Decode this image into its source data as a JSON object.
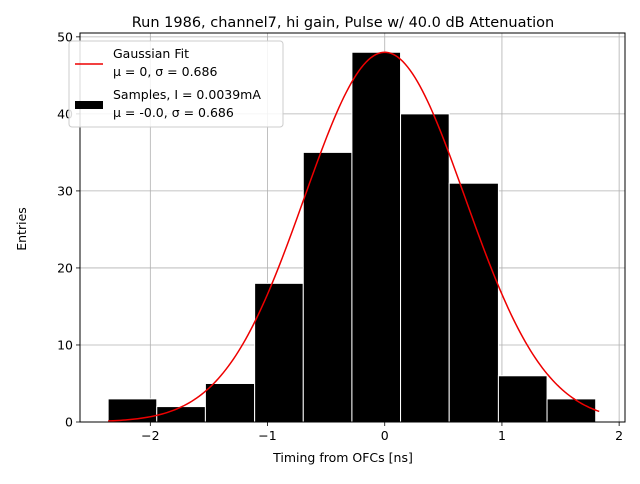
{
  "chart_data": {
    "type": "bar",
    "title": "Run 1986, channel7, hi gain, Pulse w/ 40.0 dB Attenuation",
    "xlabel": "Timing from OFCs [ns]",
    "ylabel": "Entries",
    "xlim": [
      -2.6,
      2.05
    ],
    "ylim": [
      0,
      50.5
    ],
    "xticks": [
      -2,
      -1,
      0,
      1,
      2
    ],
    "xtick_labels": [
      "−2",
      "−1",
      "0",
      "1",
      "2"
    ],
    "yticks": [
      0,
      10,
      20,
      30,
      40,
      50
    ],
    "ytick_labels": [
      "0",
      "10",
      "20",
      "30",
      "40",
      "50"
    ],
    "grid": true,
    "legend_position": "upper-left",
    "histogram": {
      "name": "Samples, I = 0.0039mA",
      "stats": "μ = -0.0, σ = 0.686",
      "color": "#000000",
      "bin_edges": [
        -2.36,
        -1.945,
        -1.53,
        -1.11,
        -0.695,
        -0.28,
        0.135,
        0.55,
        0.97,
        1.385,
        1.8
      ],
      "values": [
        3,
        2,
        5,
        18,
        35,
        48,
        40,
        31,
        6,
        3
      ]
    },
    "fit": {
      "name": "Gaussian Fit",
      "stats": "μ = 0, σ = 0.686",
      "color": "#ee0000",
      "mu": 0,
      "sigma": 0.686,
      "amplitude": 48,
      "x_range": [
        -2.36,
        1.83
      ]
    }
  }
}
